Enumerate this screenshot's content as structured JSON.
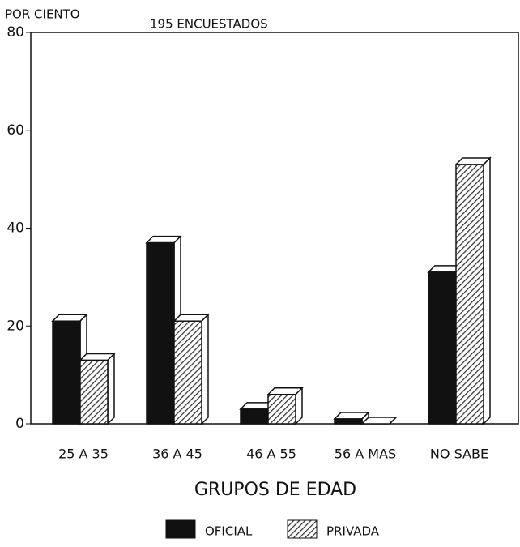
{
  "chart_data": {
    "type": "bar",
    "y_label": "POR CIENTO",
    "subtitle": "195 ENCUESTADOS",
    "x_label": "GRUPOS DE EDAD",
    "categories": [
      "25 A 35",
      "36 A 45",
      "46 A 55",
      "56 A MAS",
      "NO SABE"
    ],
    "series": [
      {
        "name": "OFICIAL",
        "color": "#111111",
        "values": [
          21,
          37,
          3,
          1,
          31
        ]
      },
      {
        "name": "PRIVADA",
        "color": "#333333",
        "values": [
          13,
          21,
          6,
          0,
          53
        ]
      }
    ],
    "ylim": [
      0,
      80
    ],
    "yticks": [
      0,
      20,
      40,
      60,
      80
    ],
    "grid": false
  }
}
